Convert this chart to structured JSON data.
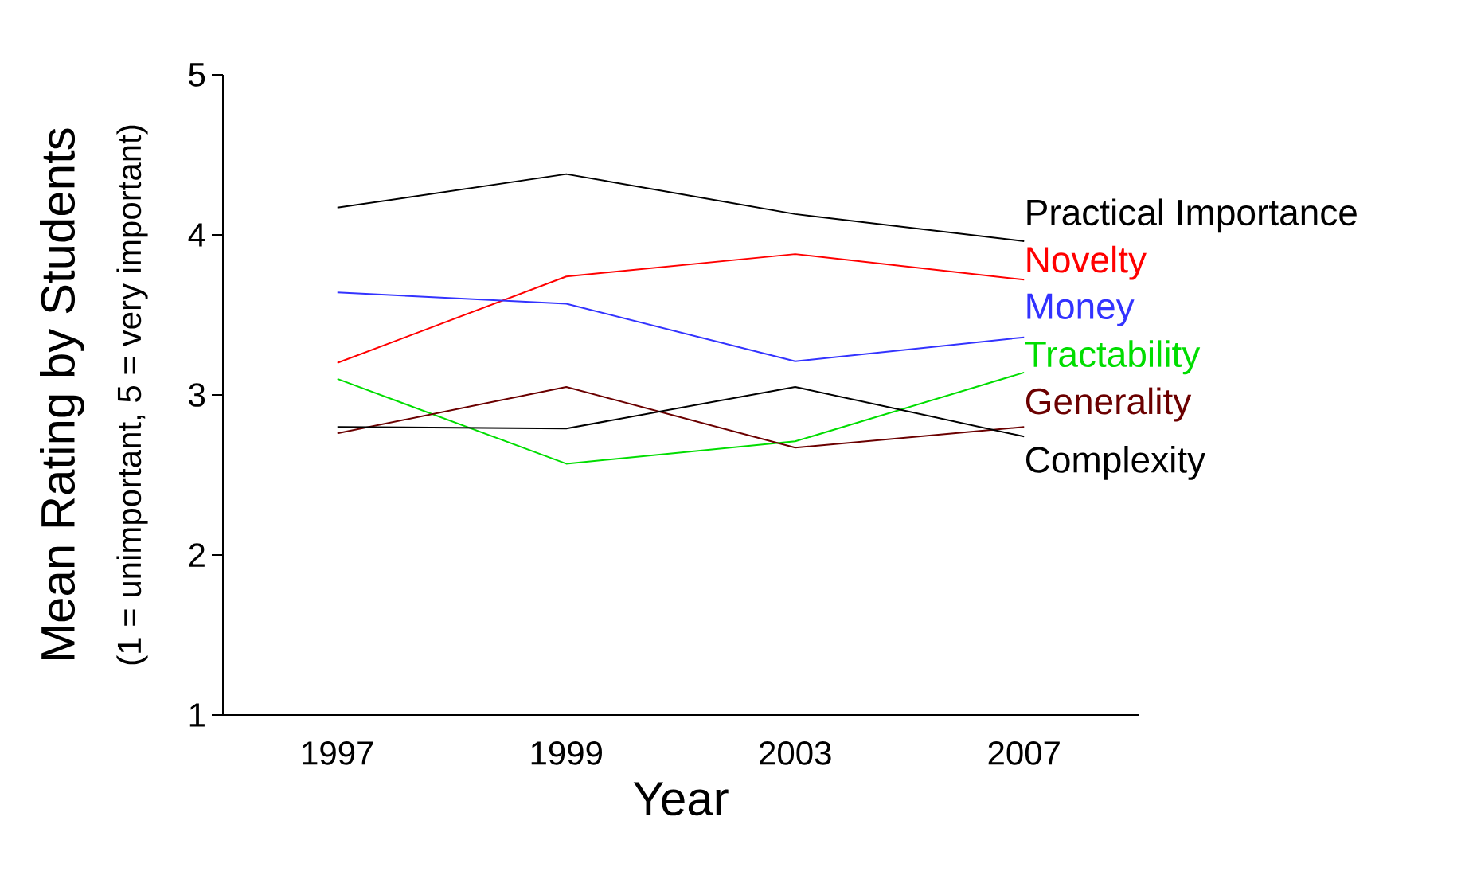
{
  "chart_data": {
    "type": "line",
    "xlabel": "Year",
    "ylabel": "Mean Rating by Students",
    "annotations": [
      "(1 = unimportant, 5 = very important)"
    ],
    "categories": [
      "1997",
      "1999",
      "2003",
      "2007"
    ],
    "ylim": [
      1,
      5
    ],
    "yticks": [
      1,
      2,
      3,
      4,
      5
    ],
    "grid": false,
    "legend": false,
    "marker": "none",
    "line_style": "solid",
    "series": [
      {
        "name": "Practical Importance",
        "color": "#000000",
        "values": [
          4.17,
          4.38,
          4.13,
          3.96
        ]
      },
      {
        "name": "Novelty",
        "color": "#ff0000",
        "values": [
          3.2,
          3.74,
          3.88,
          3.72
        ]
      },
      {
        "name": "Money",
        "color": "#3333ff",
        "values": [
          3.64,
          3.57,
          3.21,
          3.36
        ]
      },
      {
        "name": "Tractability",
        "color": "#00dd00",
        "values": [
          3.1,
          2.57,
          2.71,
          3.14
        ]
      },
      {
        "name": "Generality",
        "color": "#6b0000",
        "values": [
          2.76,
          3.05,
          2.67,
          2.8
        ]
      },
      {
        "name": "Complexity",
        "color": "#000000",
        "values": [
          2.8,
          2.79,
          3.05,
          2.74
        ]
      }
    ]
  }
}
